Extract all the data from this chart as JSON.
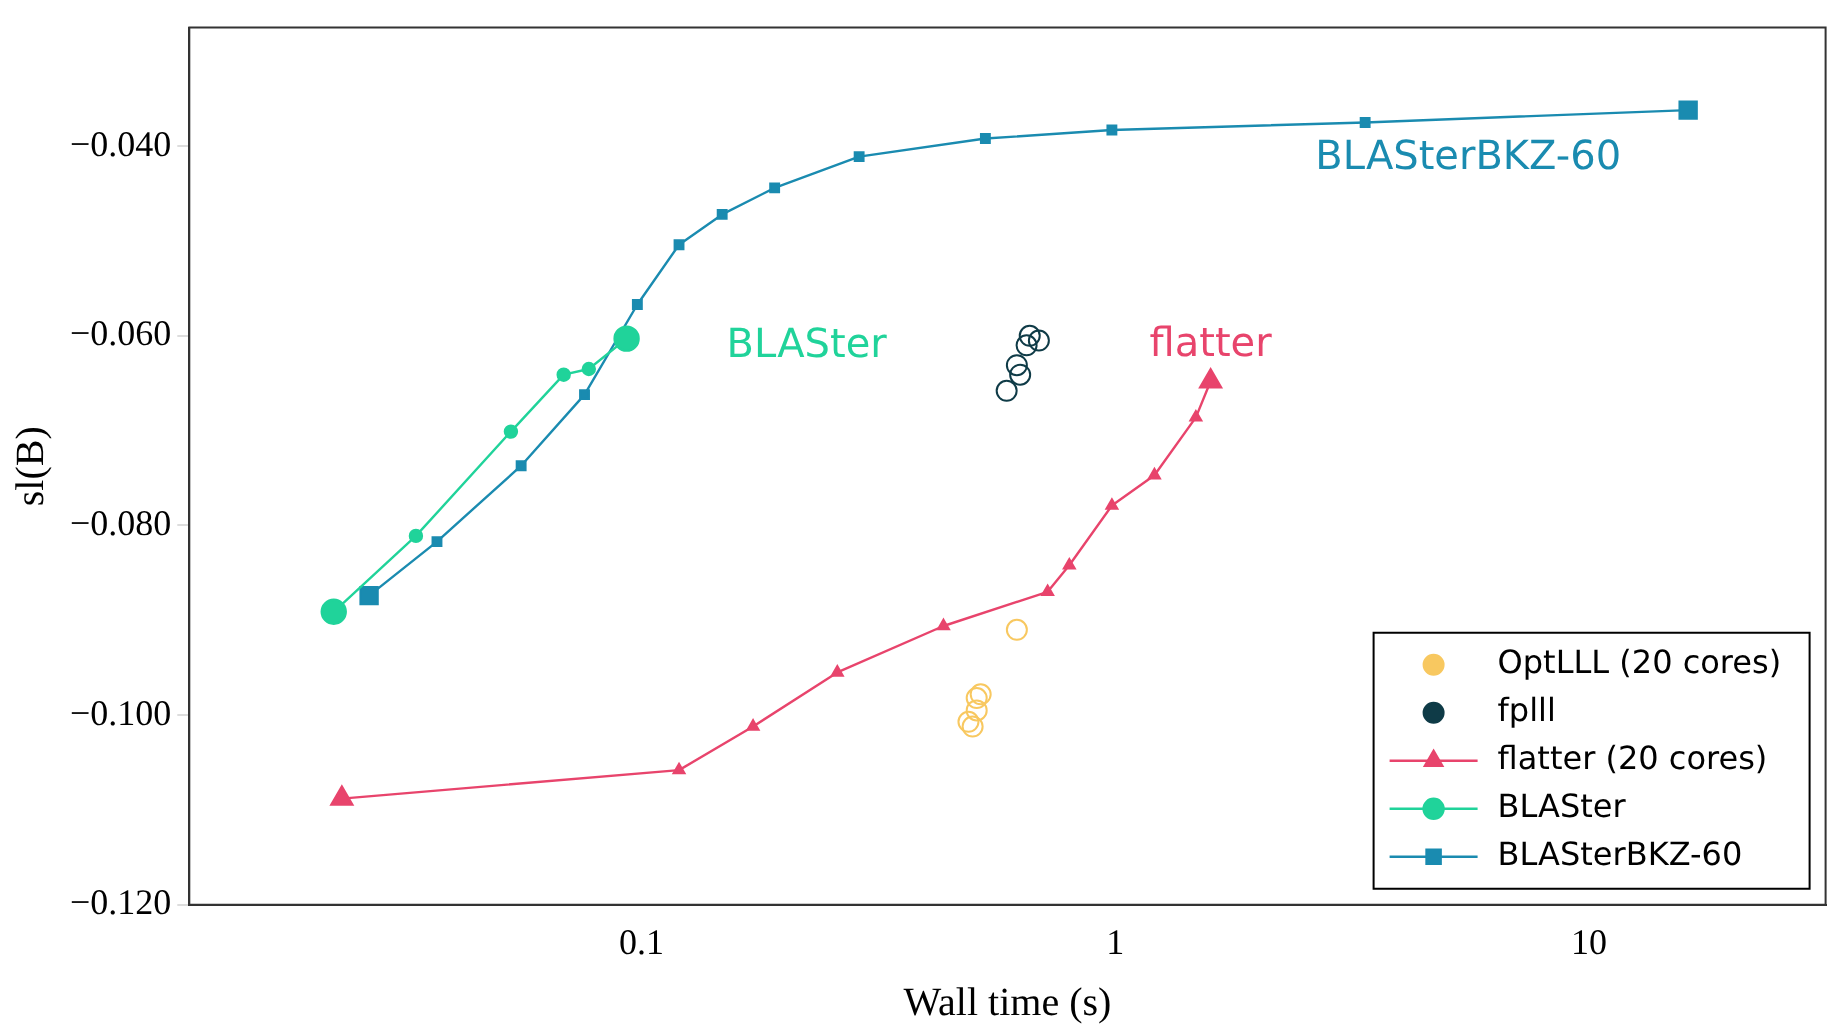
{
  "chart_data": {
    "type": "line",
    "xlabel": "Wall time (s)",
    "ylabel": "sl(B)",
    "log": "x",
    "xlim": [
      0.0111,
      31.6
    ],
    "xticks": [
      0.1,
      1,
      10
    ],
    "ylim": [
      -0.12,
      -0.0275
    ],
    "yticks": [
      {
        "value": -0.12,
        "label": "−0.120"
      },
      {
        "value": -0.1,
        "label": "−0.100"
      },
      {
        "value": -0.08,
        "label": "−0.080"
      },
      {
        "value": -0.06,
        "label": "−0.060"
      },
      {
        "value": -0.04,
        "label": "−0.040"
      }
    ],
    "grid": false,
    "legend": "bottom right",
    "series": [
      {
        "name": "OptLLL (20 cores)",
        "type": "scatter",
        "marker": "circle",
        "color": "#f8c860",
        "x": [
          0.62,
          0.51,
          0.52,
          0.49,
          0.5,
          0.51
        ],
        "values": [
          -0.091,
          -0.0982,
          -0.0978,
          -0.1007,
          -0.1012,
          -0.0995
        ]
      },
      {
        "name": "fplll",
        "type": "scatter",
        "marker": "circle",
        "color": "#0f3b47",
        "x": [
          0.59,
          0.62,
          0.65,
          0.66,
          0.63,
          0.69
        ],
        "values": [
          -0.0658,
          -0.0631,
          -0.061,
          -0.06,
          -0.0641,
          -0.0605
        ]
      },
      {
        "name": "flatter (20 cores)",
        "type": "line",
        "marker": "triangle",
        "color": "#e8446c",
        "x": [
          0.0233,
          0.12,
          0.172,
          0.259,
          0.434,
          0.72,
          0.8,
          0.984,
          1.21,
          1.48,
          1.59
        ],
        "values": [
          -0.1088,
          -0.1058,
          -0.1012,
          -0.0955,
          -0.0906,
          -0.087,
          -0.0842,
          -0.0779,
          -0.0747,
          -0.0686,
          -0.0648
        ]
      },
      {
        "name": "BLASter",
        "type": "line",
        "marker": "circle",
        "color": "#20d39a",
        "x": [
          0.0224,
          0.0334,
          0.053,
          0.0685,
          0.0774,
          0.093
        ],
        "values": [
          -0.0891,
          -0.0811,
          -0.0701,
          -0.0641,
          -0.0635,
          -0.0603
        ]
      },
      {
        "name": "BLASterBKZ-60",
        "type": "line",
        "marker": "square",
        "color": "#1a8bb0",
        "x": [
          0.0266,
          0.037,
          0.0557,
          0.0758,
          0.098,
          0.12,
          0.148,
          0.191,
          0.288,
          0.532,
          0.984,
          3.37,
          16.2
        ],
        "values": [
          -0.0874,
          -0.0817,
          -0.0737,
          -0.0662,
          -0.0567,
          -0.0504,
          -0.0472,
          -0.0444,
          -0.0411,
          -0.0392,
          -0.0383,
          -0.0375,
          -0.0362
        ]
      }
    ],
    "annotations": [
      "BLASterBKZ-60",
      "BLASter",
      "flatter"
    ]
  }
}
